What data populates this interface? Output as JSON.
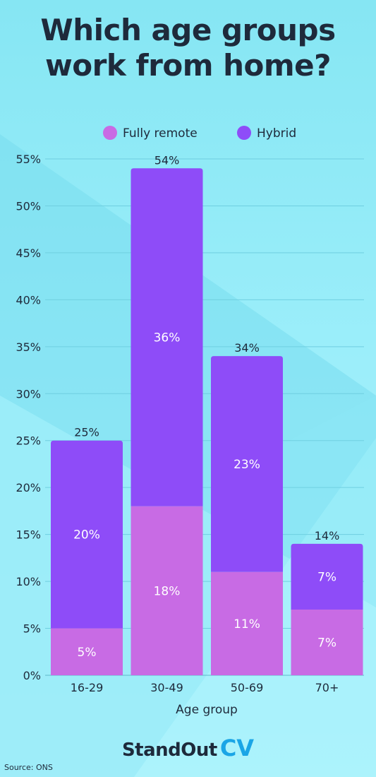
{
  "title_line1": "Which age groups",
  "title_line2": "work from home?",
  "source": "Source: ONS",
  "logo": {
    "text": "StandOut",
    "accent": "CV"
  },
  "colors": {
    "fully_remote": "#c86be4",
    "hybrid": "#8e4cf8",
    "text": "#1e2a3b",
    "logo_accent": "#1aa5e6"
  },
  "chart_data": {
    "type": "bar",
    "stacked": true,
    "categories": [
      "16-29",
      "30-49",
      "50-69",
      "70+"
    ],
    "series": [
      {
        "name": "Fully remote",
        "values": [
          5,
          18,
          11,
          7
        ],
        "labels": [
          "5%",
          "18%",
          "11%",
          "7%"
        ]
      },
      {
        "name": "Hybrid",
        "values": [
          20,
          36,
          23,
          7
        ],
        "labels": [
          "20%",
          "36%",
          "23%",
          "7%"
        ]
      }
    ],
    "totals": [
      25,
      54,
      34,
      14
    ],
    "total_labels": [
      "25%",
      "54%",
      "34%",
      "14%"
    ],
    "xlabel": "Age group",
    "ylabel": "",
    "ylim": [
      0,
      55
    ],
    "yticks": [
      0,
      5,
      10,
      15,
      20,
      25,
      30,
      35,
      40,
      45,
      50,
      55
    ],
    "ytick_labels": [
      "0%",
      "5%",
      "10%",
      "15%",
      "20%",
      "25%",
      "30%",
      "35%",
      "40%",
      "45%",
      "50%",
      "55%"
    ],
    "grid": true,
    "legend": "top"
  }
}
